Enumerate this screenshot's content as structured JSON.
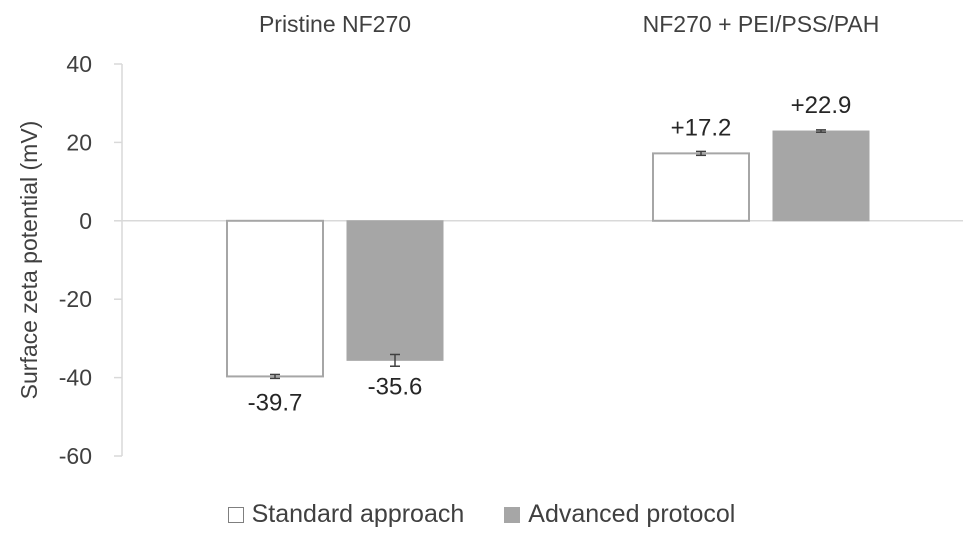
{
  "chart_data": {
    "type": "bar",
    "categories": [
      "Pristine NF270",
      "NF270 + PEI/PSS/PAH"
    ],
    "series": [
      {
        "name": "Standard approach",
        "values": [
          -39.7,
          17.2
        ],
        "errors": [
          0.5,
          0.5
        ],
        "labels": [
          "-39.7",
          "+17.2"
        ],
        "fill": "#ffffff",
        "stroke": "#a6a6a6"
      },
      {
        "name": "Advanced protocol",
        "values": [
          -35.6,
          22.9
        ],
        "errors": [
          1.5,
          0.3
        ],
        "labels": [
          "-35.6",
          "+22.9"
        ],
        "fill": "#a6a6a6",
        "stroke": "#a6a6a6"
      }
    ],
    "ylabel": "Surface zeta potential (mV)",
    "xlabel": "",
    "ylim": [
      -60,
      40
    ],
    "yticks": [
      40,
      20,
      0,
      -20,
      -40,
      -60
    ],
    "category_label_position": "top",
    "grid": false,
    "legend_position": "bottom"
  }
}
